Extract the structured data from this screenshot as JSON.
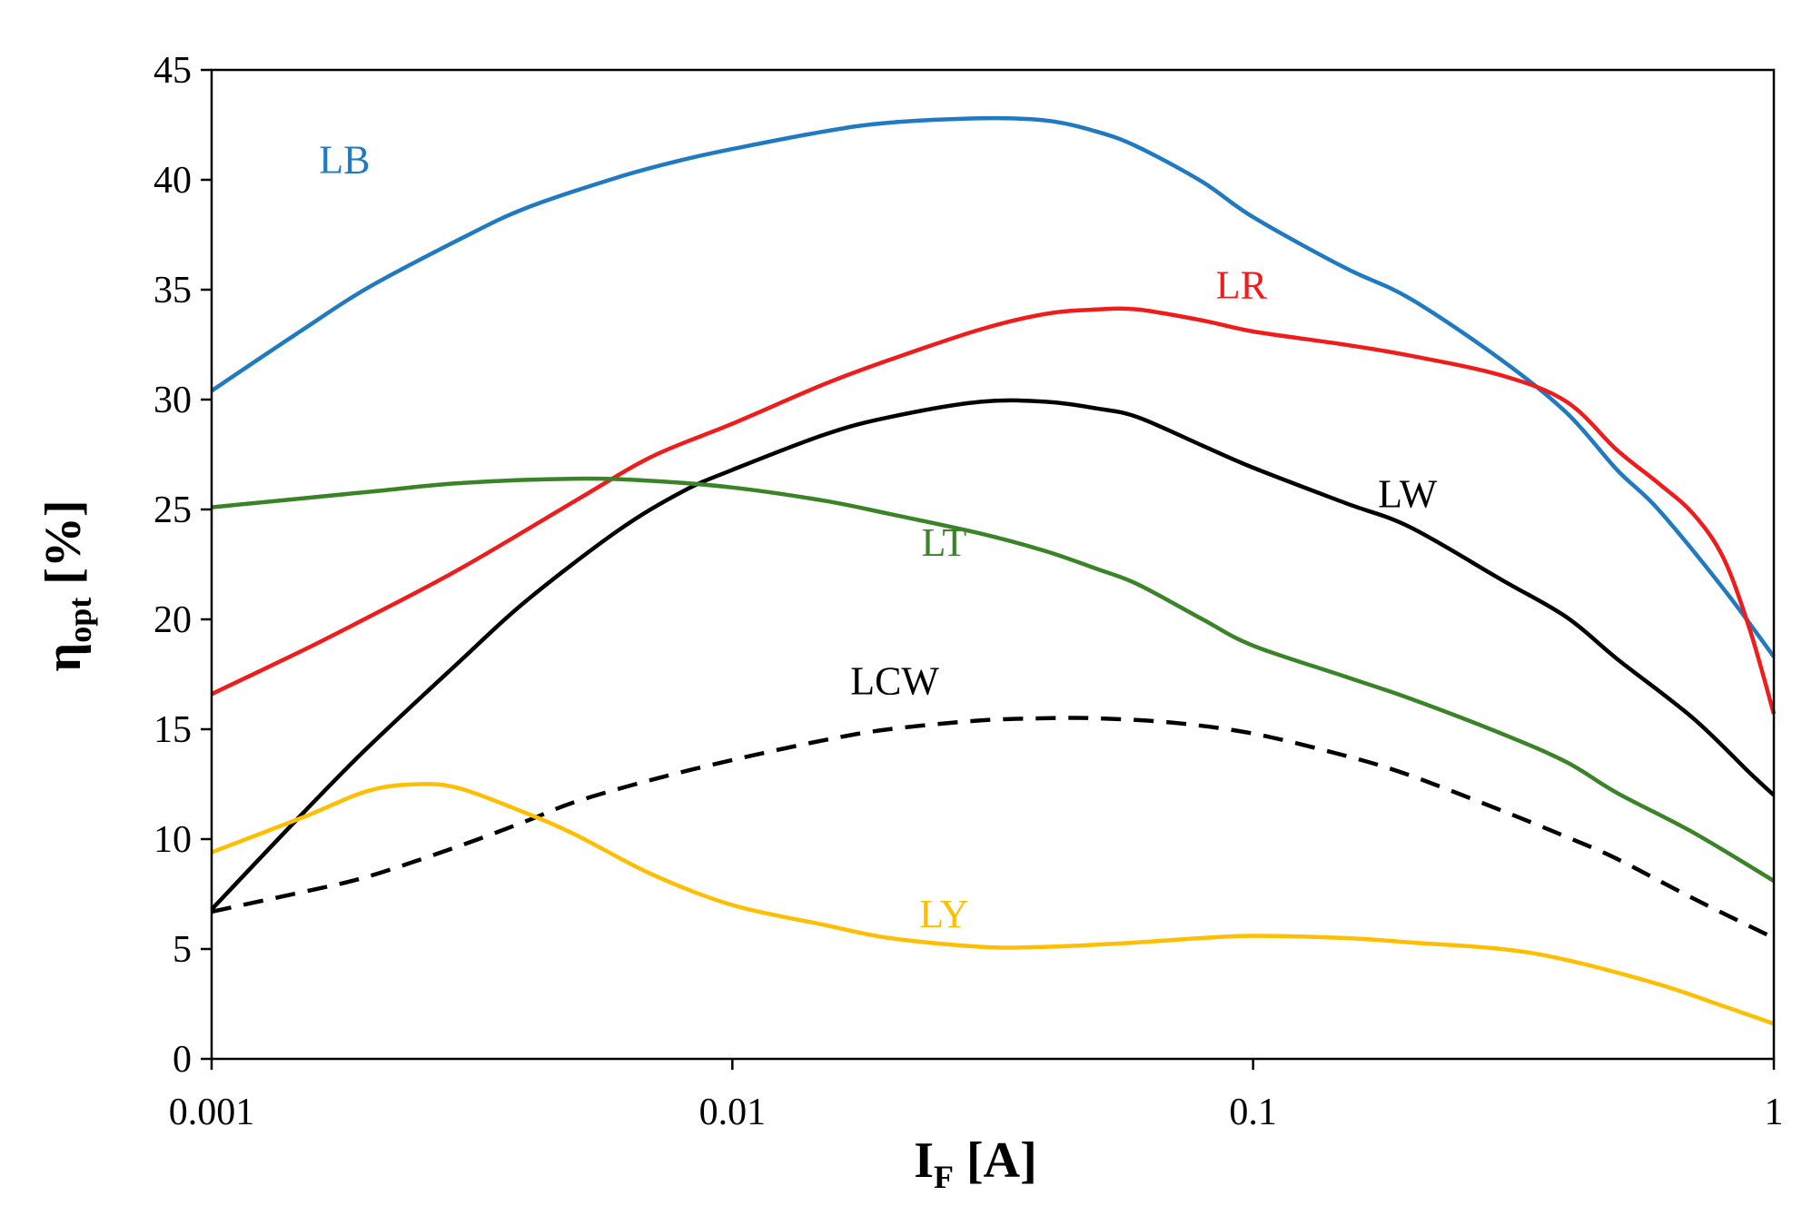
{
  "chart_data": {
    "type": "line",
    "title": "",
    "xscale": "log",
    "xlim": [
      0.001,
      1
    ],
    "ylim": [
      0,
      45
    ],
    "xticks": [
      0.001,
      0.01,
      0.1,
      1
    ],
    "xtick_labels": [
      "0.001",
      "0.01",
      "0.1",
      "1"
    ],
    "yticks": [
      0,
      5,
      10,
      15,
      20,
      25,
      30,
      35,
      40,
      45
    ],
    "ytick_labels": [
      "0",
      "5",
      "10",
      "15",
      "20",
      "25",
      "30",
      "35",
      "40",
      "45"
    ],
    "xlabel": {
      "main": "I",
      "sub": "F",
      "unit": " [A]"
    },
    "ylabel": {
      "main": "η",
      "sub": "opt",
      "unit": " [%]"
    },
    "grid": false,
    "series": [
      {
        "name": "LB",
        "color": "#1F7AC2",
        "dash": "solid",
        "label_at": [
          0.0018,
          40.3
        ],
        "points": [
          [
            0.001,
            30.4
          ],
          [
            0.0015,
            33.2
          ],
          [
            0.002,
            35.1
          ],
          [
            0.003,
            37.3
          ],
          [
            0.004,
            38.7
          ],
          [
            0.006,
            40.1
          ],
          [
            0.008,
            40.9
          ],
          [
            0.01,
            41.4
          ],
          [
            0.015,
            42.2
          ],
          [
            0.02,
            42.6
          ],
          [
            0.03,
            42.8
          ],
          [
            0.04,
            42.7
          ],
          [
            0.05,
            42.2
          ],
          [
            0.06,
            41.5
          ],
          [
            0.08,
            39.9
          ],
          [
            0.1,
            38.3
          ],
          [
            0.15,
            36.0
          ],
          [
            0.2,
            34.6
          ],
          [
            0.3,
            31.8
          ],
          [
            0.4,
            29.4
          ],
          [
            0.5,
            26.8
          ],
          [
            0.6,
            25.0
          ],
          [
            0.8,
            21.4
          ],
          [
            1.0,
            18.3
          ]
        ]
      },
      {
        "name": "LR",
        "color": "#F01C1C",
        "dash": "solid",
        "label_at": [
          0.095,
          34.6
        ],
        "points": [
          [
            0.001,
            16.6
          ],
          [
            0.0015,
            18.6
          ],
          [
            0.002,
            20.1
          ],
          [
            0.003,
            22.3
          ],
          [
            0.005,
            25.4
          ],
          [
            0.007,
            27.4
          ],
          [
            0.01,
            28.9
          ],
          [
            0.015,
            30.7
          ],
          [
            0.02,
            31.8
          ],
          [
            0.03,
            33.2
          ],
          [
            0.04,
            33.9
          ],
          [
            0.05,
            34.1
          ],
          [
            0.06,
            34.1
          ],
          [
            0.08,
            33.6
          ],
          [
            0.1,
            33.1
          ],
          [
            0.15,
            32.5
          ],
          [
            0.2,
            32.0
          ],
          [
            0.3,
            31.1
          ],
          [
            0.4,
            29.9
          ],
          [
            0.5,
            27.7
          ],
          [
            0.6,
            26.2
          ],
          [
            0.7,
            24.8
          ],
          [
            0.8,
            22.8
          ],
          [
            0.9,
            19.5
          ],
          [
            1.0,
            15.7
          ]
        ]
      },
      {
        "name": "LW",
        "color": "#000000",
        "dash": "solid",
        "label_at": [
          0.198,
          25.1
        ],
        "points": [
          [
            0.001,
            6.8
          ],
          [
            0.0015,
            11.2
          ],
          [
            0.002,
            14.2
          ],
          [
            0.003,
            18.1
          ],
          [
            0.004,
            20.8
          ],
          [
            0.006,
            24.0
          ],
          [
            0.008,
            25.8
          ],
          [
            0.01,
            26.8
          ],
          [
            0.015,
            28.4
          ],
          [
            0.02,
            29.2
          ],
          [
            0.03,
            29.9
          ],
          [
            0.04,
            29.9
          ],
          [
            0.05,
            29.6
          ],
          [
            0.06,
            29.2
          ],
          [
            0.08,
            27.9
          ],
          [
            0.1,
            26.9
          ],
          [
            0.15,
            25.3
          ],
          [
            0.2,
            24.2
          ],
          [
            0.3,
            21.8
          ],
          [
            0.4,
            20.1
          ],
          [
            0.5,
            18.2
          ],
          [
            0.7,
            15.5
          ],
          [
            0.9,
            13.0
          ],
          [
            1.0,
            12.0
          ]
        ]
      },
      {
        "name": "LT",
        "color": "#3A8327",
        "dash": "solid",
        "label_at": [
          0.0255,
          22.9
        ],
        "points": [
          [
            0.001,
            25.1
          ],
          [
            0.002,
            25.8
          ],
          [
            0.003,
            26.2
          ],
          [
            0.005,
            26.4
          ],
          [
            0.007,
            26.3
          ],
          [
            0.01,
            26.0
          ],
          [
            0.015,
            25.4
          ],
          [
            0.02,
            24.8
          ],
          [
            0.03,
            23.9
          ],
          [
            0.04,
            23.1
          ],
          [
            0.05,
            22.3
          ],
          [
            0.06,
            21.6
          ],
          [
            0.08,
            20.0
          ],
          [
            0.1,
            18.8
          ],
          [
            0.15,
            17.4
          ],
          [
            0.2,
            16.4
          ],
          [
            0.3,
            14.8
          ],
          [
            0.4,
            13.5
          ],
          [
            0.5,
            12.1
          ],
          [
            0.7,
            10.3
          ],
          [
            1.0,
            8.1
          ]
        ]
      },
      {
        "name": "LCW",
        "color": "#000000",
        "dash": "dashed",
        "label_at": [
          0.0205,
          16.6
        ],
        "points": [
          [
            0.001,
            6.7
          ],
          [
            0.0015,
            7.6
          ],
          [
            0.002,
            8.3
          ],
          [
            0.003,
            9.7
          ],
          [
            0.004,
            10.8
          ],
          [
            0.005,
            11.7
          ],
          [
            0.007,
            12.7
          ],
          [
            0.01,
            13.6
          ],
          [
            0.015,
            14.5
          ],
          [
            0.02,
            15.0
          ],
          [
            0.03,
            15.4
          ],
          [
            0.04,
            15.5
          ],
          [
            0.05,
            15.5
          ],
          [
            0.07,
            15.3
          ],
          [
            0.1,
            14.8
          ],
          [
            0.15,
            13.8
          ],
          [
            0.2,
            12.9
          ],
          [
            0.3,
            11.3
          ],
          [
            0.4,
            10.1
          ],
          [
            0.5,
            9.1
          ],
          [
            0.7,
            7.3
          ],
          [
            1.0,
            5.5
          ]
        ]
      },
      {
        "name": "LY",
        "color": "#FFBE00",
        "dash": "solid",
        "label_at": [
          0.0255,
          6.0
        ],
        "points": [
          [
            0.001,
            9.4
          ],
          [
            0.0015,
            11.0
          ],
          [
            0.002,
            12.2
          ],
          [
            0.0025,
            12.5
          ],
          [
            0.003,
            12.3
          ],
          [
            0.004,
            11.2
          ],
          [
            0.005,
            10.2
          ],
          [
            0.007,
            8.4
          ],
          [
            0.01,
            7.0
          ],
          [
            0.015,
            6.1
          ],
          [
            0.02,
            5.5
          ],
          [
            0.03,
            5.1
          ],
          [
            0.04,
            5.1
          ],
          [
            0.06,
            5.3
          ],
          [
            0.08,
            5.5
          ],
          [
            0.1,
            5.6
          ],
          [
            0.15,
            5.5
          ],
          [
            0.2,
            5.3
          ],
          [
            0.3,
            5.0
          ],
          [
            0.4,
            4.5
          ],
          [
            0.6,
            3.4
          ],
          [
            0.8,
            2.4
          ],
          [
            1.0,
            1.6
          ]
        ]
      }
    ]
  }
}
